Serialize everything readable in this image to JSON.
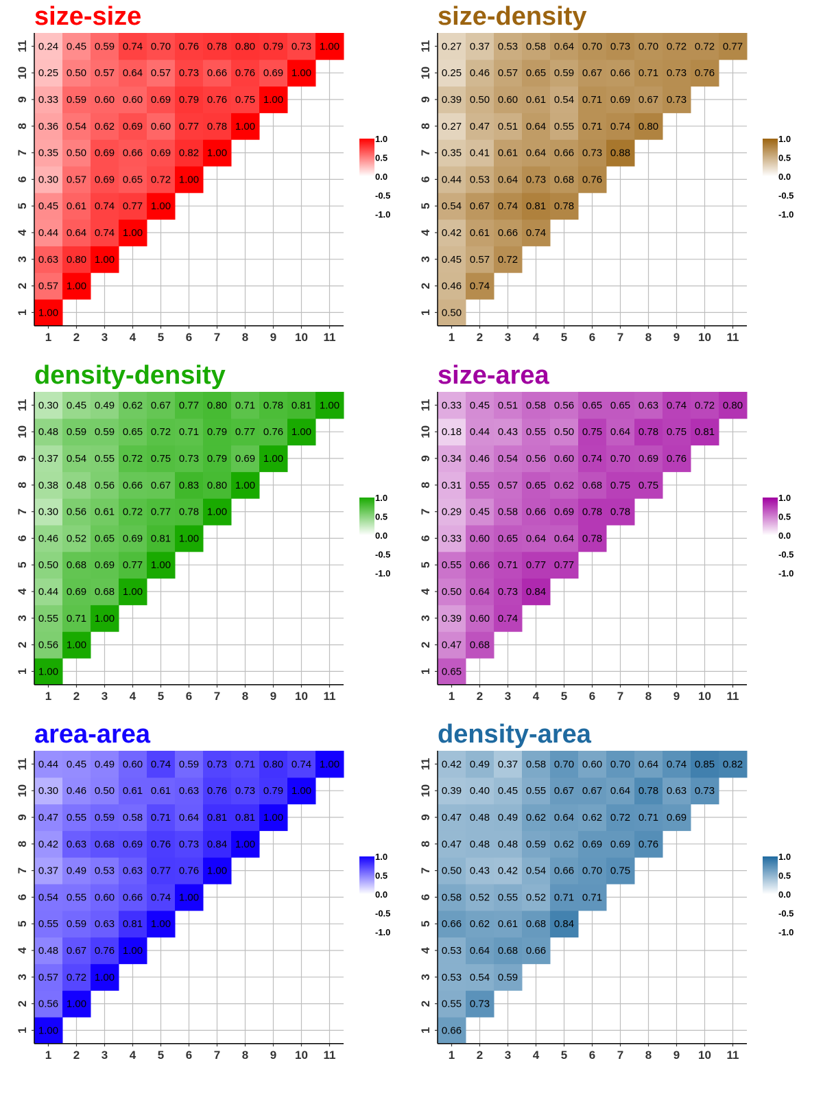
{
  "chart_data": [
    {
      "type": "heatmap",
      "title": "size-size",
      "color": "#FF0000",
      "x": [
        "1",
        "2",
        "3",
        "4",
        "5",
        "6",
        "7",
        "8",
        "9",
        "10",
        "11"
      ],
      "y": [
        "1",
        "2",
        "3",
        "4",
        "5",
        "6",
        "7",
        "8",
        "9",
        "10",
        "11"
      ],
      "lower_triangle": true,
      "rows": [
        [
          "1.00"
        ],
        [
          "0.57",
          "1.00"
        ],
        [
          "0.63",
          "0.80",
          "1.00"
        ],
        [
          "0.44",
          "0.64",
          "0.74",
          "1.00"
        ],
        [
          "0.45",
          "0.61",
          "0.74",
          "0.77",
          "1.00"
        ],
        [
          "0.30",
          "0.57",
          "0.69",
          "0.65",
          "0.72",
          "1.00"
        ],
        [
          "0.35",
          "0.50",
          "0.69",
          "0.66",
          "0.69",
          "0.82",
          "1.00"
        ],
        [
          "0.36",
          "0.54",
          "0.62",
          "0.69",
          "0.60",
          "0.77",
          "0.78",
          "1.00"
        ],
        [
          "0.33",
          "0.59",
          "0.60",
          "0.60",
          "0.69",
          "0.79",
          "0.76",
          "0.75",
          "1.00"
        ],
        [
          "0.25",
          "0.50",
          "0.57",
          "0.64",
          "0.57",
          "0.73",
          "0.66",
          "0.76",
          "0.69",
          "1.00"
        ],
        [
          "0.24",
          "0.45",
          "0.59",
          "0.74",
          "0.70",
          "0.76",
          "0.78",
          "0.80",
          "0.79",
          "0.73",
          "1.00"
        ]
      ],
      "legend_labels": [
        "1.0",
        "0.5",
        "0.0",
        "-0.5",
        "-1.0"
      ],
      "scale_range": [
        -1,
        1
      ]
    },
    {
      "type": "heatmap",
      "title": "size-density",
      "color": "#9C6410",
      "x": [
        "1",
        "2",
        "3",
        "4",
        "5",
        "6",
        "7",
        "8",
        "9",
        "10",
        "11"
      ],
      "y": [
        "1",
        "2",
        "3",
        "4",
        "5",
        "6",
        "7",
        "8",
        "9",
        "10",
        "11"
      ],
      "lower_triangle": true,
      "rows": [
        [
          "0.50"
        ],
        [
          "0.46",
          "0.74"
        ],
        [
          "0.45",
          "0.57",
          "0.72"
        ],
        [
          "0.42",
          "0.61",
          "0.66",
          "0.74"
        ],
        [
          "0.54",
          "0.67",
          "0.74",
          "0.81",
          "0.78"
        ],
        [
          "0.44",
          "0.53",
          "0.64",
          "0.73",
          "0.68",
          "0.76"
        ],
        [
          "0.35",
          "0.41",
          "0.61",
          "0.64",
          "0.66",
          "0.73",
          "0.88"
        ],
        [
          "0.27",
          "0.47",
          "0.51",
          "0.64",
          "0.55",
          "0.71",
          "0.74",
          "0.80"
        ],
        [
          "0.39",
          "0.50",
          "0.60",
          "0.61",
          "0.54",
          "0.71",
          "0.69",
          "0.67",
          "0.73"
        ],
        [
          "0.25",
          "0.46",
          "0.57",
          "0.65",
          "0.59",
          "0.67",
          "0.66",
          "0.71",
          "0.73",
          "0.76"
        ],
        [
          "0.27",
          "0.37",
          "0.53",
          "0.58",
          "0.64",
          "0.70",
          "0.73",
          "0.70",
          "0.72",
          "0.72",
          "0.77"
        ]
      ],
      "legend_labels": [
        "1.0",
        "0.5",
        "0.0",
        "-0.5",
        "-1.0"
      ],
      "scale_range": [
        -1,
        1
      ]
    },
    {
      "type": "heatmap",
      "title": "density-density",
      "color": "#19AA00",
      "x": [
        "1",
        "2",
        "3",
        "4",
        "5",
        "6",
        "7",
        "8",
        "9",
        "10",
        "11"
      ],
      "y": [
        "1",
        "2",
        "3",
        "4",
        "5",
        "6",
        "7",
        "8",
        "9",
        "10",
        "11"
      ],
      "lower_triangle": true,
      "rows": [
        [
          "1.00"
        ],
        [
          "0.56",
          "1.00"
        ],
        [
          "0.55",
          "0.71",
          "1.00"
        ],
        [
          "0.44",
          "0.69",
          "0.68",
          "1.00"
        ],
        [
          "0.50",
          "0.68",
          "0.69",
          "0.77",
          "1.00"
        ],
        [
          "0.46",
          "0.52",
          "0.65",
          "0.69",
          "0.81",
          "1.00"
        ],
        [
          "0.30",
          "0.56",
          "0.61",
          "0.72",
          "0.77",
          "0.78",
          "1.00"
        ],
        [
          "0.38",
          "0.48",
          "0.56",
          "0.66",
          "0.67",
          "0.83",
          "0.80",
          "1.00"
        ],
        [
          "0.37",
          "0.54",
          "0.55",
          "0.72",
          "0.75",
          "0.73",
          "0.79",
          "0.69",
          "1.00"
        ],
        [
          "0.48",
          "0.59",
          "0.59",
          "0.65",
          "0.72",
          "0.71",
          "0.79",
          "0.77",
          "0.76",
          "1.00"
        ],
        [
          "0.30",
          "0.45",
          "0.49",
          "0.62",
          "0.67",
          "0.77",
          "0.80",
          "0.71",
          "0.78",
          "0.81",
          "1.00"
        ]
      ],
      "legend_labels": [
        "1.0",
        "0.5",
        "0.0",
        "-0.5",
        "-1.0"
      ],
      "scale_range": [
        -1,
        1
      ]
    },
    {
      "type": "heatmap",
      "title": "size-area",
      "color": "#A000A0",
      "x": [
        "1",
        "2",
        "3",
        "4",
        "5",
        "6",
        "7",
        "8",
        "9",
        "10",
        "11"
      ],
      "y": [
        "1",
        "2",
        "3",
        "4",
        "5",
        "6",
        "7",
        "8",
        "9",
        "10",
        "11"
      ],
      "lower_triangle": true,
      "rows": [
        [
          "0.65"
        ],
        [
          "0.47",
          "0.68"
        ],
        [
          "0.39",
          "0.60",
          "0.74"
        ],
        [
          "0.50",
          "0.64",
          "0.73",
          "0.84"
        ],
        [
          "0.55",
          "0.66",
          "0.71",
          "0.77",
          "0.77"
        ],
        [
          "0.33",
          "0.60",
          "0.65",
          "0.64",
          "0.64",
          "0.78"
        ],
        [
          "0.29",
          "0.45",
          "0.58",
          "0.66",
          "0.69",
          "0.78",
          "0.78"
        ],
        [
          "0.31",
          "0.55",
          "0.57",
          "0.65",
          "0.62",
          "0.68",
          "0.75",
          "0.75"
        ],
        [
          "0.34",
          "0.46",
          "0.54",
          "0.56",
          "0.60",
          "0.74",
          "0.70",
          "0.69",
          "0.76"
        ],
        [
          "0.18",
          "0.44",
          "0.43",
          "0.55",
          "0.50",
          "0.75",
          "0.64",
          "0.78",
          "0.75",
          "0.81"
        ],
        [
          "0.33",
          "0.45",
          "0.51",
          "0.58",
          "0.56",
          "0.65",
          "0.65",
          "0.63",
          "0.74",
          "0.72",
          "0.80"
        ]
      ],
      "legend_labels": [
        "1.0",
        "0.5",
        "0.0",
        "-0.5",
        "-1.0"
      ],
      "scale_range": [
        -1,
        1
      ]
    },
    {
      "type": "heatmap",
      "title": "area-area",
      "color": "#1400FF",
      "x": [
        "1",
        "2",
        "3",
        "4",
        "5",
        "6",
        "7",
        "8",
        "9",
        "10",
        "11"
      ],
      "y": [
        "1",
        "2",
        "3",
        "4",
        "5",
        "6",
        "7",
        "8",
        "9",
        "10",
        "11"
      ],
      "lower_triangle": true,
      "rows": [
        [
          "1.00"
        ],
        [
          "0.56",
          "1.00"
        ],
        [
          "0.57",
          "0.72",
          "1.00"
        ],
        [
          "0.48",
          "0.67",
          "0.76",
          "1.00"
        ],
        [
          "0.55",
          "0.59",
          "0.63",
          "0.81",
          "1.00"
        ],
        [
          "0.54",
          "0.55",
          "0.60",
          "0.66",
          "0.74",
          "1.00"
        ],
        [
          "0.37",
          "0.49",
          "0.53",
          "0.63",
          "0.77",
          "0.76",
          "1.00"
        ],
        [
          "0.42",
          "0.63",
          "0.68",
          "0.69",
          "0.76",
          "0.73",
          "0.84",
          "1.00"
        ],
        [
          "0.47",
          "0.55",
          "0.59",
          "0.58",
          "0.71",
          "0.64",
          "0.81",
          "0.81",
          "1.00"
        ],
        [
          "0.30",
          "0.46",
          "0.50",
          "0.61",
          "0.61",
          "0.63",
          "0.76",
          "0.73",
          "0.79",
          "1.00"
        ],
        [
          "0.44",
          "0.45",
          "0.49",
          "0.60",
          "0.74",
          "0.59",
          "0.73",
          "0.71",
          "0.80",
          "0.74",
          "1.00"
        ]
      ],
      "legend_labels": [
        "1.0",
        "0.5",
        "0.0",
        "-0.5",
        "-1.0"
      ],
      "scale_range": [
        -1,
        1
      ]
    },
    {
      "type": "heatmap",
      "title": "density-area",
      "color": "#1F6AA0",
      "x": [
        "1",
        "2",
        "3",
        "4",
        "5",
        "6",
        "7",
        "8",
        "9",
        "10",
        "11"
      ],
      "y": [
        "1",
        "2",
        "3",
        "4",
        "5",
        "6",
        "7",
        "8",
        "9",
        "10",
        "11"
      ],
      "lower_triangle": true,
      "rows": [
        [
          "0.66"
        ],
        [
          "0.55",
          "0.73"
        ],
        [
          "0.53",
          "0.54",
          "0.59"
        ],
        [
          "0.53",
          "0.64",
          "0.68",
          "0.66"
        ],
        [
          "0.66",
          "0.62",
          "0.61",
          "0.68",
          "0.84"
        ],
        [
          "0.58",
          "0.52",
          "0.55",
          "0.52",
          "0.71",
          "0.71"
        ],
        [
          "0.50",
          "0.43",
          "0.42",
          "0.54",
          "0.66",
          "0.70",
          "0.75"
        ],
        [
          "0.47",
          "0.48",
          "0.48",
          "0.59",
          "0.62",
          "0.69",
          "0.69",
          "0.76"
        ],
        [
          "0.47",
          "0.48",
          "0.49",
          "0.62",
          "0.64",
          "0.62",
          "0.72",
          "0.71",
          "0.69"
        ],
        [
          "0.39",
          "0.40",
          "0.45",
          "0.55",
          "0.67",
          "0.67",
          "0.64",
          "0.78",
          "0.63",
          "0.73"
        ],
        [
          "0.42",
          "0.49",
          "0.37",
          "0.58",
          "0.70",
          "0.60",
          "0.70",
          "0.64",
          "0.74",
          "0.85",
          "0.82"
        ]
      ],
      "legend_labels": [
        "1.0",
        "0.5",
        "0.0",
        "-0.5",
        "-1.0"
      ],
      "scale_range": [
        -1,
        1
      ]
    }
  ]
}
